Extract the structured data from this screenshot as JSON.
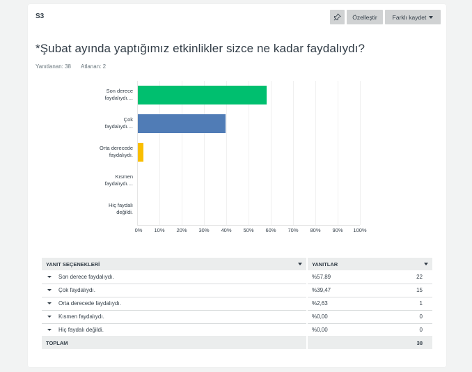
{
  "question": {
    "number": "S3",
    "title": "*Şubat ayında yaptığımız etkinlikler sizce ne kadar faydalıydı?",
    "answered_label": "Yanıtlanan: 38",
    "skipped_label": "Atlanan: 2"
  },
  "toolbar": {
    "pin_icon": "pin-icon",
    "customize_label": "Özelleştir",
    "save_as_label": "Farklı kaydet"
  },
  "colors": {
    "green": "#00bf6f",
    "blue": "#507cb6",
    "yellow": "#f9be00",
    "header_bg": "#ebeded",
    "page_bg": "#f2f3f3"
  },
  "chart_data": {
    "type": "bar",
    "orientation": "horizontal",
    "categories": [
      "Son derece faydalıydı.",
      "Çok faydalıydı.",
      "Orta derecede faydalıydı.",
      "Kısmen faydalıydı.",
      "Hiç faydalı değildi."
    ],
    "category_labels_display": [
      [
        "Son derece",
        "faydalıydı...."
      ],
      [
        "Çok",
        "faydalıydı...."
      ],
      [
        "Orta derecede",
        "faydalıydı."
      ],
      [
        "Kısmen",
        "faydalıydı...."
      ],
      [
        "Hiç faydalı",
        "değildi."
      ]
    ],
    "values": [
      57.89,
      39.47,
      2.63,
      0,
      0
    ],
    "bar_colors": [
      "#00bf6f",
      "#507cb6",
      "#f9be00",
      "#00bf6f",
      "#00bf6f"
    ],
    "xlim": [
      0,
      100
    ],
    "x_ticks": [
      "0%",
      "10%",
      "20%",
      "30%",
      "40%",
      "50%",
      "60%",
      "70%",
      "80%",
      "90%",
      "100%"
    ],
    "title": "",
    "xlabel": "",
    "ylabel": "",
    "grid": true,
    "legend": "none"
  },
  "table": {
    "headers": [
      "YANIT SEÇENEKLERİ",
      "YANITLAR"
    ],
    "rows": [
      {
        "label": "Son derece faydalıydı.",
        "percent": "%57,89",
        "count": "22"
      },
      {
        "label": "Çok faydalıydı.",
        "percent": "%39,47",
        "count": "15"
      },
      {
        "label": "Orta derecede faydalıydı.",
        "percent": "%2,63",
        "count": "1"
      },
      {
        "label": "Kısmen faydalıydı.",
        "percent": "%0,00",
        "count": "0"
      },
      {
        "label": "Hiç faydalı değildi.",
        "percent": "%0,00",
        "count": "0"
      }
    ],
    "total_label": "TOPLAM",
    "total_count": "38"
  }
}
